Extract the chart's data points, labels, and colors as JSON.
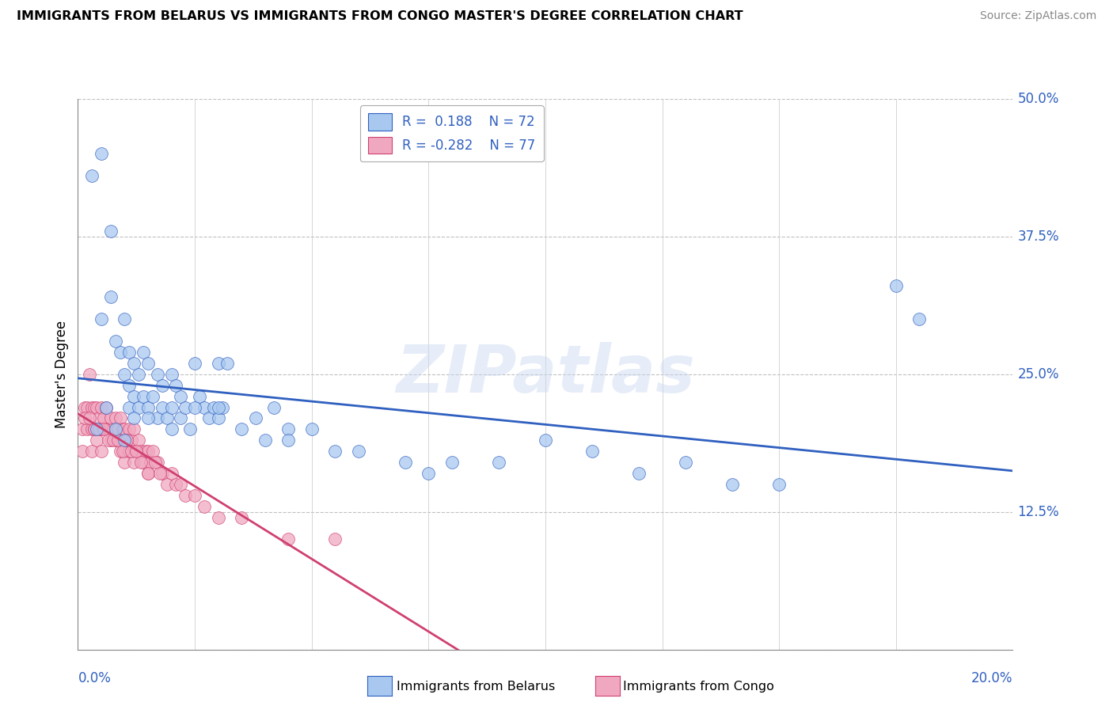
{
  "title": "IMMIGRANTS FROM BELARUS VS IMMIGRANTS FROM CONGO MASTER'S DEGREE CORRELATION CHART",
  "source": "Source: ZipAtlas.com",
  "ylabel": "Master's Degree",
  "xlim": [
    0.0,
    20.0
  ],
  "ylim": [
    0.0,
    50.0
  ],
  "yticks": [
    0.0,
    12.5,
    25.0,
    37.5,
    50.0
  ],
  "ytick_labels": [
    "",
    "12.5%",
    "25.0%",
    "37.5%",
    "50.0%"
  ],
  "color_belarus": "#a8c8f0",
  "color_congo": "#f0a8c0",
  "line_color_belarus": "#3060c0",
  "line_color_congo": "#d04070",
  "legend_text_color": "#3060c0",
  "watermark_text": "ZIPatlas",
  "belarus_x": [
    0.3,
    0.5,
    0.5,
    0.7,
    0.7,
    0.8,
    0.9,
    1.0,
    1.0,
    1.1,
    1.1,
    1.1,
    1.2,
    1.2,
    1.3,
    1.3,
    1.4,
    1.4,
    1.5,
    1.5,
    1.6,
    1.7,
    1.7,
    1.8,
    1.8,
    1.9,
    2.0,
    2.0,
    2.1,
    2.2,
    2.2,
    2.3,
    2.4,
    2.5,
    2.6,
    2.7,
    2.8,
    2.9,
    3.0,
    3.0,
    3.1,
    3.2,
    3.5,
    4.0,
    4.2,
    4.5,
    5.0,
    5.5,
    6.0,
    7.0,
    7.5,
    8.0,
    9.0,
    10.0,
    11.0,
    12.0,
    13.0,
    14.0,
    15.0,
    0.4,
    0.6,
    0.8,
    1.0,
    1.2,
    1.5,
    2.0,
    2.5,
    3.0,
    3.8,
    4.5,
    17.5,
    18.0
  ],
  "belarus_y": [
    43.0,
    45.0,
    30.0,
    38.0,
    32.0,
    28.0,
    27.0,
    30.0,
    25.0,
    27.0,
    24.0,
    22.0,
    26.0,
    23.0,
    25.0,
    22.0,
    27.0,
    23.0,
    26.0,
    22.0,
    23.0,
    25.0,
    21.0,
    24.0,
    22.0,
    21.0,
    25.0,
    22.0,
    24.0,
    23.0,
    21.0,
    22.0,
    20.0,
    26.0,
    23.0,
    22.0,
    21.0,
    22.0,
    26.0,
    21.0,
    22.0,
    26.0,
    20.0,
    19.0,
    22.0,
    20.0,
    20.0,
    18.0,
    18.0,
    17.0,
    16.0,
    17.0,
    17.0,
    19.0,
    18.0,
    16.0,
    17.0,
    15.0,
    15.0,
    20.0,
    22.0,
    20.0,
    19.0,
    21.0,
    21.0,
    20.0,
    22.0,
    22.0,
    21.0,
    19.0,
    33.0,
    30.0
  ],
  "congo_x": [
    0.1,
    0.1,
    0.15,
    0.2,
    0.2,
    0.25,
    0.3,
    0.3,
    0.3,
    0.35,
    0.35,
    0.4,
    0.4,
    0.45,
    0.5,
    0.5,
    0.5,
    0.55,
    0.6,
    0.6,
    0.65,
    0.7,
    0.7,
    0.75,
    0.8,
    0.8,
    0.85,
    0.9,
    0.9,
    0.95,
    1.0,
    1.0,
    1.0,
    1.05,
    1.1,
    1.1,
    1.15,
    1.2,
    1.2,
    1.25,
    1.3,
    1.35,
    1.4,
    1.45,
    1.5,
    1.5,
    1.55,
    1.6,
    1.7,
    1.8,
    1.9,
    2.0,
    2.1,
    2.2,
    2.3,
    2.5,
    2.7,
    3.0,
    3.5,
    4.5,
    0.15,
    0.25,
    0.35,
    0.45,
    0.55,
    0.65,
    0.75,
    0.85,
    0.95,
    1.05,
    1.15,
    1.25,
    1.35,
    1.5,
    1.65,
    1.75,
    5.5
  ],
  "congo_y": [
    20.0,
    18.0,
    22.0,
    22.0,
    20.0,
    25.0,
    22.0,
    20.0,
    18.0,
    22.0,
    20.0,
    22.0,
    19.0,
    21.0,
    22.0,
    20.0,
    18.0,
    21.0,
    22.0,
    20.0,
    20.0,
    21.0,
    19.0,
    20.0,
    21.0,
    19.0,
    20.0,
    21.0,
    18.0,
    20.0,
    20.0,
    18.0,
    17.0,
    19.0,
    20.0,
    18.0,
    19.0,
    20.0,
    17.0,
    18.0,
    19.0,
    18.0,
    17.0,
    18.0,
    18.0,
    16.0,
    17.0,
    18.0,
    17.0,
    16.0,
    15.0,
    16.0,
    15.0,
    15.0,
    14.0,
    14.0,
    13.0,
    12.0,
    12.0,
    10.0,
    21.0,
    21.0,
    20.0,
    20.0,
    20.0,
    19.0,
    19.0,
    19.0,
    18.0,
    19.0,
    18.0,
    18.0,
    17.0,
    16.0,
    17.0,
    16.0,
    10.0
  ]
}
